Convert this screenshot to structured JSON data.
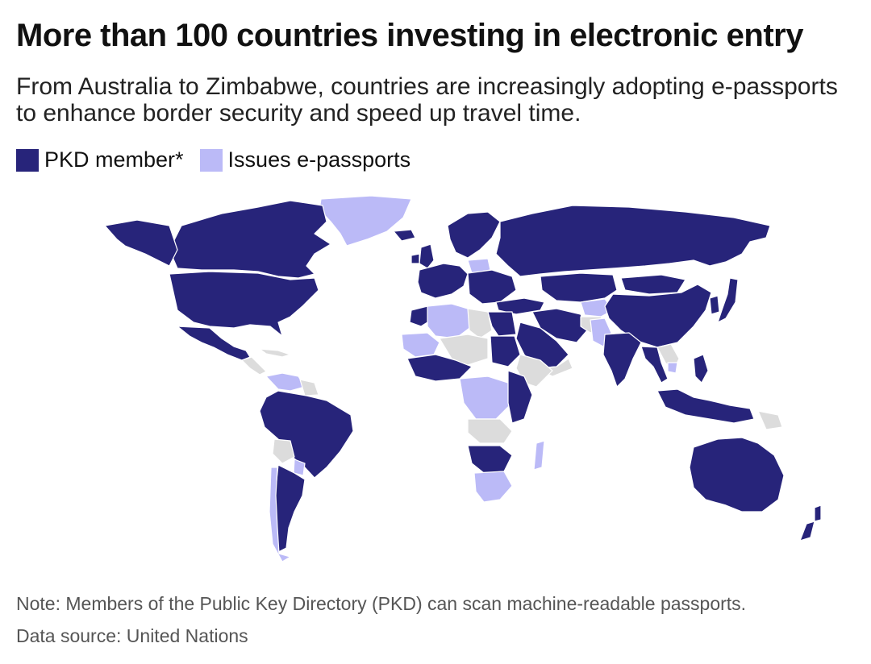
{
  "title": "More than 100 countries investing in electronic entry",
  "subtitle": "From Australia to Zimbabwe, countries are increasingly adopting e-passports to enhance border security and speed up travel time.",
  "legend": {
    "items": [
      {
        "label": "PKD member*",
        "color": "#27247a"
      },
      {
        "label": "Issues e-passports",
        "color": "#bbbaf7"
      }
    ]
  },
  "colors": {
    "pkd": "#27247a",
    "issues": "#bbbaf7",
    "none": "#dcdcdc",
    "background": "#ffffff"
  },
  "note": "Note: Members of the Public Key Directory (PKD) can scan machine-readable passports.",
  "source": "Data source: United Nations"
}
